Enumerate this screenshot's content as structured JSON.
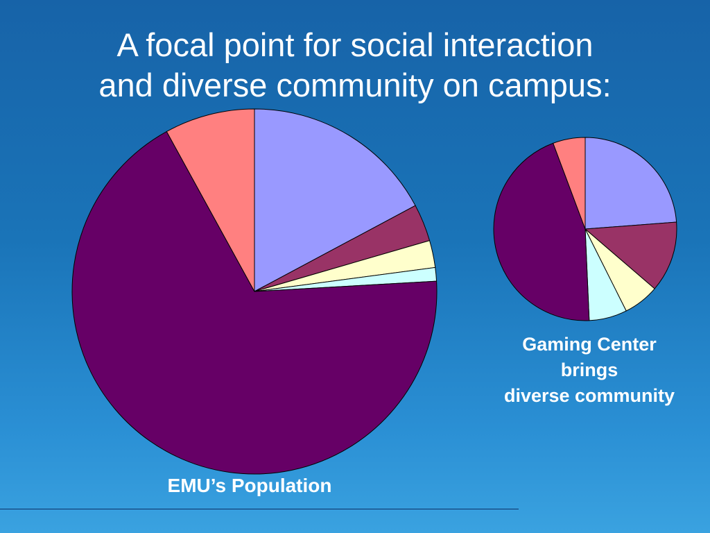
{
  "title": {
    "line1": "A focal point for social interaction",
    "line2": "and diverse community on campus:"
  },
  "chart_data": [
    {
      "type": "pie",
      "label": "EMU’s Population",
      "categories": [
        "light purple",
        "maroon",
        "cream",
        "light cyan",
        "dark purple",
        "salmon"
      ],
      "values": [
        17.2,
        3.3,
        2.4,
        1.2,
        67.9,
        8.0
      ],
      "colors": [
        "#9999ff",
        "#993366",
        "#ffffcc",
        "#ccffff",
        "#660066",
        "#ff8080"
      ]
    },
    {
      "type": "pie",
      "label_lines": [
        "Gaming Center",
        "brings",
        "diverse community"
      ],
      "categories": [
        "light purple",
        "maroon",
        "cream",
        "light cyan",
        "dark purple",
        "salmon"
      ],
      "values": [
        23.8,
        12.5,
        6.3,
        6.7,
        45.0,
        5.7
      ],
      "colors": [
        "#9999ff",
        "#993366",
        "#ffffcc",
        "#ccffff",
        "#660066",
        "#ff8080"
      ]
    }
  ]
}
